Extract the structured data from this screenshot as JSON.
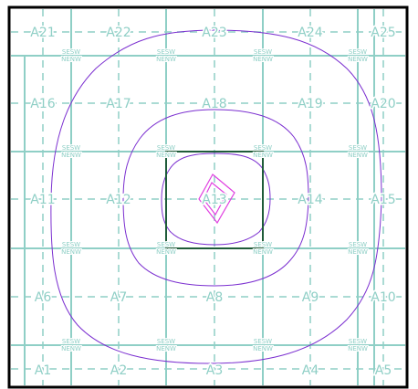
{
  "colors": {
    "grid": "#8fcfc6",
    "frame": "#000000",
    "highlight_square": "#1f5c3a",
    "contours": "#7b2fd0",
    "inner_contours": "#e040e0",
    "corner_text": "#8fcfc6"
  },
  "cell_labels": [
    "A21",
    "A22",
    "A23",
    "A24",
    "A25",
    "A16",
    "A17",
    "A18",
    "A19",
    "A20",
    "A11",
    "A12",
    "A13",
    "A14",
    "A15",
    "A6",
    "A7",
    "A8",
    "A9",
    "A10",
    "A1",
    "A2",
    "A3",
    "A4",
    "A5"
  ],
  "corner_labels": {
    "se": "SE",
    "sw": "SW",
    "ne": "NE",
    "nw": "NW"
  },
  "highlighted_cell": "A13"
}
